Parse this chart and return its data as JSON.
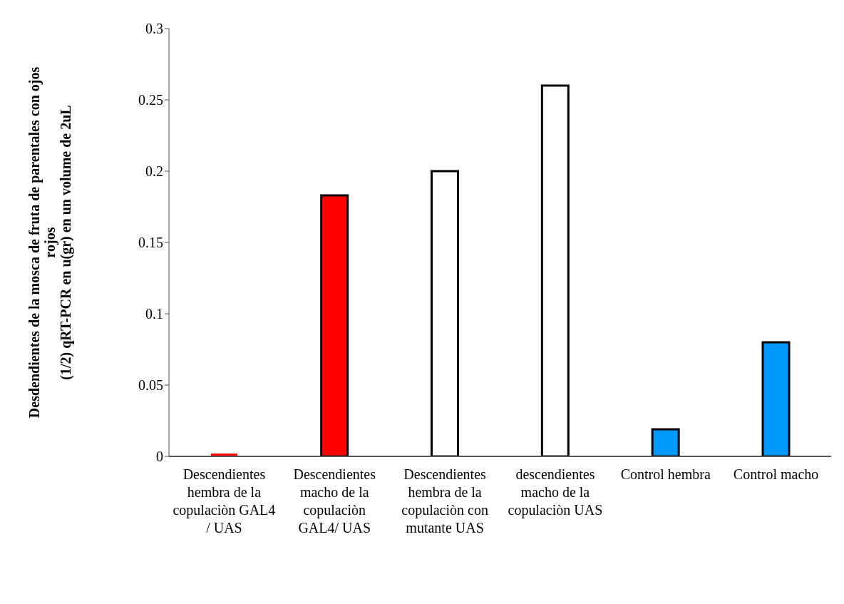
{
  "chart_data": {
    "type": "bar",
    "ylabel": "Desdendientes de la mosca de fruta de parentales con ojos rojos\n(1/2) qRT-PCR en u(gr) en un volume de 2uL",
    "categories": [
      "Descendientes hembra de la copulaciòn GAL4 / UAS",
      "Descendientes macho de la copulaciòn GAL4/ UAS",
      "Descendientes hembra de la copulaciòn con mutante UAS",
      "descendientes macho de la copulaciòn UAS",
      "Control hembra",
      "Control macho"
    ],
    "values": [
      0.002,
      0.183,
      0.2,
      0.26,
      0.019,
      0.08
    ],
    "colors": [
      "#ff0000",
      "#ff0000",
      "#ffffff",
      "#ffffff",
      "#0099ff",
      "#0099ff"
    ],
    "ylim": [
      0,
      0.3
    ],
    "yticks": [
      0,
      0.05,
      0.1,
      0.15,
      0.2,
      0.25,
      0.3
    ],
    "grid": false,
    "legend": false
  }
}
